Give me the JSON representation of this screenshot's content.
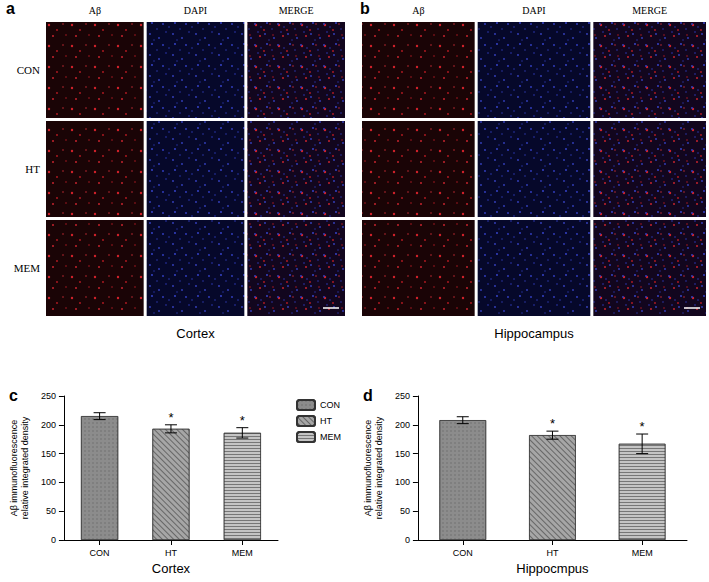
{
  "image_panels": [
    {
      "panel": "a",
      "columns": [
        "Aβ",
        "DAPI",
        "MERGE"
      ],
      "rows": [
        "CON",
        "HT",
        "MEM"
      ],
      "caption": "Cortex"
    },
    {
      "panel": "b",
      "columns": [
        "Aβ",
        "DAPI",
        "MERGE"
      ],
      "caption": "Hippocampus"
    }
  ],
  "chart_data": [
    {
      "type": "bar",
      "panel": "c",
      "ylabel": "Aβ immunofluorescence\nrelative integrated density",
      "xlabel": "Cortex",
      "categories": [
        "CON",
        "HT",
        "MEM"
      ],
      "values": [
        215,
        193,
        186
      ],
      "errors": [
        6,
        7,
        9
      ],
      "colors": [
        "#8c8c8c",
        "#a6a6a6",
        "#c4c4c4"
      ],
      "annotations": [
        {
          "category": "HT",
          "text": "*"
        },
        {
          "category": "MEM",
          "text": "*"
        }
      ],
      "ylim": [
        0,
        250
      ],
      "yticks": [
        0,
        50,
        100,
        150,
        200,
        250
      ],
      "legend": "top-right",
      "grid": false
    },
    {
      "type": "bar",
      "panel": "d",
      "ylabel": "Aβ immunofluorescence\nrelative integrated density",
      "xlabel": "Hippocmpus",
      "categories": [
        "CON",
        "HT",
        "MEM"
      ],
      "values": [
        208,
        182,
        167
      ],
      "errors": [
        6,
        7,
        17
      ],
      "colors": [
        "#8c8c8c",
        "#a6a6a6",
        "#c4c4c4"
      ],
      "annotations": [
        {
          "category": "HT",
          "text": "*"
        },
        {
          "category": "MEM",
          "text": "*"
        }
      ],
      "ylim": [
        0,
        250
      ],
      "yticks": [
        0,
        50,
        100,
        150,
        200,
        250
      ],
      "grid": false
    }
  ]
}
